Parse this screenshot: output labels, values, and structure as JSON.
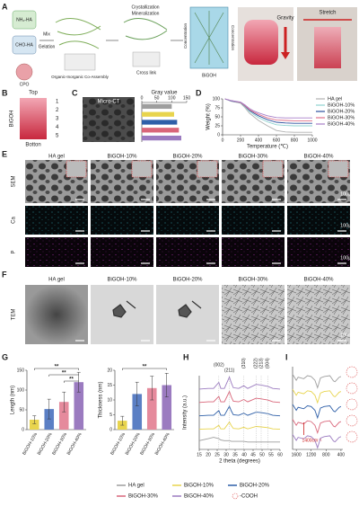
{
  "figure": {
    "panel_labels": [
      "A",
      "B",
      "C",
      "D",
      "E",
      "F",
      "G",
      "H",
      "I"
    ],
    "A": {
      "nh2": "NH₂-HA",
      "cho": "CHO-HA",
      "cpo": "CPO",
      "mix": "Mix",
      "gelation": "Gelation",
      "coassembly": "Organic-Inorganic Co-Assembly",
      "crystallization": "Crystallization",
      "mineralization": "Mineralization",
      "crosslink": "Cross link",
      "concentration_left": "Concentration",
      "concentration_right": "Concentration",
      "product": "BiGOH",
      "gravity": "Gravity",
      "stretch": "Stretch"
    },
    "B": {
      "top": "Top",
      "side": "BiGOH",
      "numbers": [
        "1",
        "2",
        "3",
        "4",
        "5"
      ],
      "bottom": "Botton"
    },
    "C": {
      "image_label": "Micro-CT"
    },
    "E": {
      "columns": [
        "HA gel",
        "BiGOH-10%",
        "BiGOH-20%",
        "BiGOH-30%",
        "BiGOH-40%"
      ],
      "rows": [
        "SEM",
        "Ca",
        "P"
      ],
      "scale": [
        "100μm",
        "100μm",
        "100μm"
      ]
    },
    "F": {
      "columns": [
        "HA gel",
        "BiGOH-10%",
        "BiGOH-20%",
        "BiGOH-30%",
        "BiGOH-40%"
      ],
      "row": "TEM",
      "scale": "100nm"
    },
    "legend_extra": "-COOH"
  },
  "chart_data": [
    {
      "type": "hbar",
      "title": "Gray value",
      "categories": [
        null,
        null,
        null,
        null,
        null
      ],
      "values": [
        100,
        108,
        118,
        124,
        132
      ],
      "colors": [
        "#9e9e9e",
        "#e8d44d",
        "#2e5fa8",
        "#d9667a",
        "#9b7bc0"
      ],
      "xlim": [
        0,
        150
      ],
      "xticks": [
        0,
        50,
        100,
        150
      ]
    },
    {
      "type": "line",
      "xlabel": "Temperature (℃)",
      "ylabel": "Weight (%)",
      "x": [
        25,
        100,
        200,
        250,
        300,
        350,
        400,
        500,
        600,
        700,
        800,
        1000
      ],
      "xlim": [
        0,
        1000
      ],
      "xticks": [
        0,
        200,
        400,
        600,
        800,
        1000
      ],
      "ylim": [
        0,
        100
      ],
      "yticks": [
        0,
        25,
        50,
        75,
        100
      ],
      "legend": "upper-right",
      "series": [
        {
          "name": "HA gel",
          "color": "#b0b0b0",
          "values": [
            100,
            93,
            88,
            75,
            60,
            50,
            40,
            25,
            12,
            8,
            7,
            7
          ]
        },
        {
          "name": "BiGOH-10%",
          "color": "#8fd3d0",
          "values": [
            100,
            94,
            89,
            78,
            65,
            56,
            48,
            36,
            28,
            26,
            25,
            25
          ]
        },
        {
          "name": "BiGOH-20%",
          "color": "#2c4f9e",
          "values": [
            100,
            94,
            90,
            80,
            68,
            60,
            53,
            42,
            35,
            33,
            32,
            32
          ]
        },
        {
          "name": "BiGOH-30%",
          "color": "#e0708a",
          "values": [
            100,
            95,
            90,
            81,
            70,
            63,
            57,
            47,
            41,
            40,
            39,
            39
          ]
        },
        {
          "name": "BiGOH-40%",
          "color": "#a77fc9",
          "values": [
            100,
            95,
            91,
            83,
            73,
            66,
            61,
            53,
            48,
            47,
            47,
            47
          ]
        }
      ]
    },
    {
      "type": "bar",
      "ylabel": "Length (nm)",
      "categories": [
        "BiGOH-10%",
        "BiGOH-20%",
        "BiGOH-30%",
        "BiGOH-40%"
      ],
      "values": [
        25,
        52,
        70,
        120
      ],
      "errors": [
        10,
        25,
        25,
        25
      ],
      "colors": [
        "#e8d44d",
        "#5b7fc4",
        "#e58a9c",
        "#9b7bc0"
      ],
      "ylim": [
        0,
        150
      ],
      "yticks": [
        0,
        50,
        100,
        150
      ],
      "annotations": [
        "**",
        "**",
        "**"
      ]
    },
    {
      "type": "bar",
      "ylabel": "Thickness (nm)",
      "categories": [
        "BiGOH-10%",
        "BiGOH-20%",
        "BiGOH-30%",
        "BiGOH-40%"
      ],
      "values": [
        3,
        12,
        14,
        15
      ],
      "errors": [
        1.5,
        4,
        4,
        4
      ],
      "colors": [
        "#e8d44d",
        "#5b7fc4",
        "#e58a9c",
        "#9b7bc0"
      ],
      "ylim": [
        0,
        20
      ],
      "yticks": [
        0,
        5,
        10,
        15,
        20
      ],
      "annotations": [
        "**"
      ]
    },
    {
      "type": "line",
      "xlabel": "2 theta (degrees)",
      "ylabel": "Intensity (a.u.)",
      "x": [
        15,
        20,
        23,
        25.9,
        27,
        29,
        31.8,
        32.9,
        34,
        37,
        39.8,
        42,
        46.7,
        49.5,
        53.2,
        56,
        60
      ],
      "xlim": [
        15,
        60
      ],
      "xticks": [
        15,
        20,
        25,
        30,
        35,
        40,
        45,
        50,
        55,
        60
      ],
      "ylim": [
        0,
        11
      ],
      "peaks": [
        {
          "label": "(002)",
          "x": 25.9
        },
        {
          "label": "(211)",
          "x": 31.8
        },
        {
          "label": "(310)",
          "x": 39.8
        },
        {
          "label": "(222)",
          "x": 46.7
        },
        {
          "label": "(213)",
          "x": 49.5
        },
        {
          "label": "(004)",
          "x": 53.2
        }
      ],
      "series": [
        {
          "name": "HA gel",
          "color": "#9e9e9e",
          "values": [
            1.3,
            1.6,
            1.8,
            1.6,
            1.4,
            1.3,
            1.3,
            1.2,
            1.2,
            1.2,
            1.2,
            1.1,
            1.1,
            1.1,
            1.1,
            1.1,
            1.1
          ]
        },
        {
          "name": "BiGOH-10%",
          "color": "#e8d44d",
          "values": [
            3,
            3.06,
            3.06,
            3.6,
            3.06,
            3.06,
            4.08,
            3.54,
            3.12,
            3.06,
            3.3,
            3.06,
            3.42,
            3.36,
            3.24,
            3.06,
            3
          ]
        },
        {
          "name": "BiGOH-20%",
          "color": "#2e5fa8",
          "values": [
            5,
            5.08,
            5.08,
            5.8,
            5.08,
            5.08,
            6.44,
            5.72,
            5.16,
            5.08,
            5.4,
            5.08,
            5.56,
            5.48,
            5.32,
            5.08,
            5
          ]
        },
        {
          "name": "BiGOH-30%",
          "color": "#d9667a",
          "values": [
            7,
            7.09,
            7.09,
            7.9,
            7.09,
            7.09,
            8.62,
            7.81,
            7.18,
            7.09,
            7.45,
            7.09,
            7.63,
            7.54,
            7.36,
            7.09,
            7
          ]
        },
        {
          "name": "BiGOH-40%",
          "color": "#9b7bc0",
          "values": [
            9,
            9.1,
            9.1,
            10,
            9.1,
            9.1,
            10.8,
            9.9,
            9.2,
            9.1,
            9.5,
            9.1,
            9.7,
            9.6,
            9.4,
            9.1,
            9
          ]
        }
      ]
    },
    {
      "type": "line",
      "x": [
        1700,
        1600,
        1550,
        1400,
        1300,
        1200,
        1100,
        1030,
        950,
        850,
        700,
        600,
        560,
        450,
        400
      ],
      "xlim": [
        1700,
        350
      ],
      "xticks": [
        1600,
        1200,
        800,
        400
      ],
      "ylim": [
        0,
        11
      ],
      "annotation": {
        "label": "1400cm⁻¹",
        "x": 1400
      },
      "series": [
        {
          "color": "#9e9e9e",
          "values": [
            10,
            9.2,
            9.6,
            9.4,
            9.8,
            9.7,
            9.2,
            8.2,
            9.5,
            9.7,
            9.8,
            9.1,
            9,
            9.6,
            9.7
          ]
        },
        {
          "color": "#e8d44d",
          "values": [
            8,
            7.2,
            7.6,
            7.4,
            7.8,
            7.7,
            7.2,
            6.2,
            7.5,
            7.7,
            7.8,
            7.1,
            7,
            7.6,
            7.7
          ]
        },
        {
          "color": "#2e5fa8",
          "values": [
            6,
            5.2,
            5.6,
            5.4,
            5.8,
            5.7,
            5.2,
            4.2,
            5.5,
            5.7,
            5.8,
            5.1,
            5,
            5.6,
            5.7
          ]
        },
        {
          "color": "#d9667a",
          "values": [
            4,
            3.2,
            3.6,
            3.4,
            3.8,
            3.7,
            3.2,
            2.2,
            3.5,
            3.7,
            3.8,
            3.1,
            3,
            3.6,
            3.7
          ]
        },
        {
          "color": "#9b7bc0",
          "values": [
            2,
            1.2,
            1.6,
            1.4,
            1.8,
            1.7,
            1.2,
            0.2,
            1.5,
            1.7,
            1.8,
            1.1,
            1,
            1.6,
            1.7
          ]
        }
      ]
    }
  ]
}
